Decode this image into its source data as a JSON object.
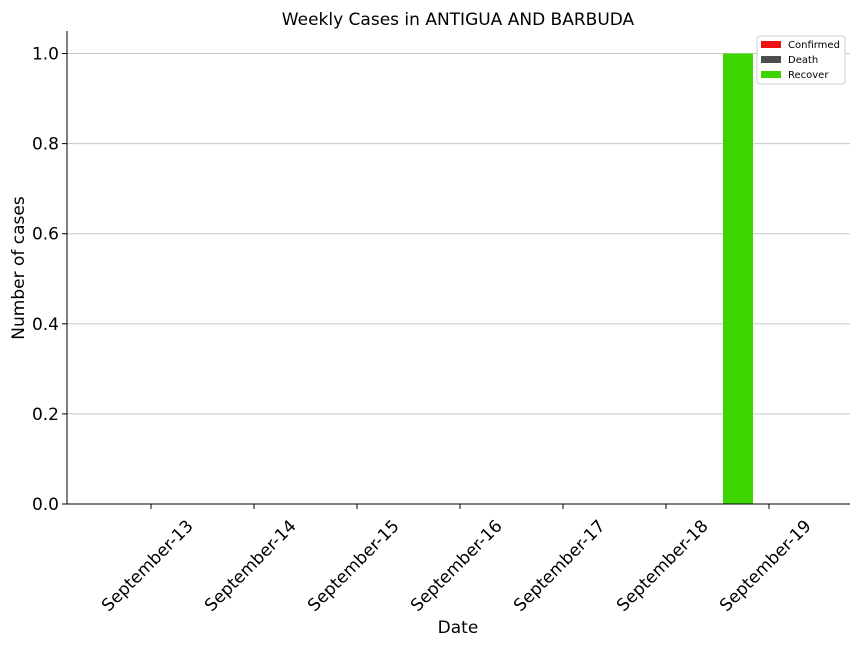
{
  "chart_data": {
    "type": "bar",
    "title": "Weekly Cases in ANTIGUA AND BARBUDA",
    "xlabel": "Date",
    "ylabel": "Number of cases",
    "categories": [
      "September-13",
      "September-14",
      "September-15",
      "September-16",
      "September-17",
      "September-18",
      "September-19"
    ],
    "series": [
      {
        "name": "Confirmed",
        "color": "#ee1111",
        "values": [
          0,
          0,
          0,
          0,
          0,
          0,
          0
        ]
      },
      {
        "name": "Death",
        "color": "#4d4d4d",
        "values": [
          0,
          0,
          0,
          0,
          0,
          0,
          0
        ]
      },
      {
        "name": "Recover",
        "color": "#3dd500",
        "values": [
          0,
          0,
          0,
          0,
          0,
          0,
          1
        ]
      }
    ],
    "ylim": [
      0,
      1.05
    ],
    "yticks": [
      "0.0",
      "0.2",
      "0.4",
      "0.6",
      "0.8",
      "1.0"
    ],
    "grid": "horizontal",
    "legend_position": "top-right"
  }
}
